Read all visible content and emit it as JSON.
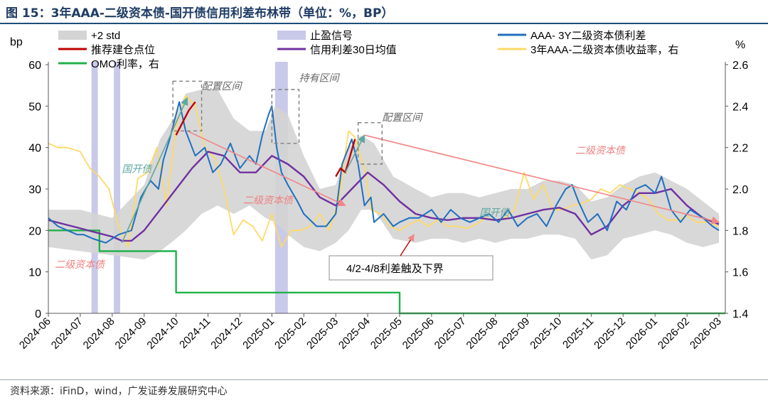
{
  "figure": {
    "title": "图 15：3年AAA-二级资本债-国开债信用利差布林带（单位：%，BP）",
    "source": "资料来源：iFinD，wind，广发证券发展研究中心"
  },
  "chart_data": {
    "type": "line",
    "title": "图 15：3年AAA-二级资本债-国开债信用利差布林带（单位：%，BP）",
    "left_axis_label": "bp",
    "right_axis_label": "%",
    "left_ylim": [
      0,
      60
    ],
    "left_ticks": [
      "0",
      "10",
      "20",
      "30",
      "40",
      "50",
      "60"
    ],
    "right_ylim": [
      1.4,
      2.6
    ],
    "right_ticks": [
      "1.4",
      "1.6",
      "1.8",
      "2.0",
      "2.2",
      "2.4",
      "2.6"
    ],
    "x_tick_labels": [
      "2024-06",
      "2024-07",
      "2024-08",
      "2024-09",
      "2024-10",
      "2024-11",
      "2024-12",
      "2025-01",
      "2025-02",
      "2025-03",
      "2025-04",
      "2025-05",
      "2025-06",
      "2025-07",
      "2025-08",
      "2025-09",
      "2025-10",
      "2025-11",
      "2025-12",
      "2026-01",
      "2026-02",
      "2026-03"
    ],
    "x_range_months": [
      0,
      21.2
    ],
    "grid": false,
    "legend_position": "top",
    "legend": [
      {
        "key": "band",
        "label": "+2 std",
        "kind": "area",
        "color": "#d4d4d4"
      },
      {
        "key": "signal",
        "label": "止盈信号",
        "kind": "area",
        "color": "#c9c9ea"
      },
      {
        "key": "spread",
        "label": "AAA- 3Y二级资本债利差",
        "kind": "line",
        "color": "#1f6fbf"
      },
      {
        "key": "buy",
        "label": "推荐建仓点位",
        "kind": "line",
        "color": "#c00000"
      },
      {
        "key": "ma30",
        "label": "信用利差30日均值",
        "kind": "line",
        "color": "#7030a0"
      },
      {
        "key": "yield",
        "label": "3年AAA-二级资本债收益率，右",
        "kind": "line",
        "color": "#ffd966"
      },
      {
        "key": "omo",
        "label": "OMO利率，右",
        "kind": "line",
        "color": "#22b14c"
      }
    ],
    "colors": {
      "band": "#d4d4d4",
      "signal": "#c9c9ea",
      "spread": "#1f6fbf",
      "buy": "#c00000",
      "ma30": "#7030a0",
      "yield": "#ffd966",
      "omo": "#22b14c",
      "trend": "#f28585",
      "uptrend": "#5fa8a0",
      "annotation": "#f08080"
    },
    "series": [
      {
        "name": "AAA- 3Y二级资本债利差",
        "axis": "left",
        "x": [
          0,
          0.3,
          0.6,
          0.9,
          1.1,
          1.4,
          1.8,
          2.2,
          2.6,
          2.9,
          3.2,
          3.45,
          3.6,
          3.8,
          4.1,
          4.3,
          4.6,
          4.9,
          5.15,
          5.4,
          5.7,
          6.0,
          6.3,
          6.5,
          6.7,
          6.9,
          7.0,
          7.15,
          7.3,
          7.5,
          7.8,
          8.0,
          8.4,
          8.7,
          9.0,
          9.2,
          9.4,
          9.5,
          9.7,
          9.9,
          10.1,
          10.2,
          10.5,
          10.8,
          11.0,
          11.3,
          11.6,
          12.0,
          12.3,
          12.6,
          12.9,
          13.2,
          13.5,
          13.8,
          14.1,
          14.4,
          14.7,
          15.0,
          15.3,
          15.6,
          15.9,
          16.2,
          16.4,
          16.6,
          16.9,
          17.2,
          17.5,
          17.8,
          18.1,
          18.4,
          18.7,
          19.0,
          19.2,
          19.5,
          19.8,
          20.1,
          20.5,
          20.8,
          21.0
        ],
        "y": [
          23,
          21,
          20,
          19,
          19,
          18,
          17,
          19,
          20,
          28,
          32,
          30,
          37,
          42,
          51,
          44,
          38,
          40,
          34,
          36,
          41,
          35,
          38,
          36,
          43,
          48,
          50,
          40,
          34,
          31,
          27,
          24,
          21,
          21,
          24,
          36,
          40,
          42,
          36,
          26,
          28,
          22,
          24,
          21,
          22,
          23,
          23,
          25,
          22,
          25,
          23,
          22,
          23,
          24,
          22,
          25,
          21,
          23,
          24,
          21,
          26,
          30,
          31,
          27,
          22,
          24,
          20,
          27,
          25,
          30,
          31,
          29,
          33,
          25,
          22,
          25,
          23,
          21,
          20
        ]
      },
      {
        "name": "信用利差30日均值",
        "axis": "left",
        "x": [
          0,
          0.5,
          1.0,
          1.5,
          2.0,
          2.3,
          2.6,
          3.0,
          3.5,
          4.0,
          4.5,
          5.0,
          5.5,
          6.0,
          6.5,
          7.0,
          7.5,
          8.0,
          8.5,
          9.0,
          9.5,
          10.0,
          10.5,
          11.0,
          11.5,
          12.0,
          12.5,
          13.0,
          13.5,
          14.0,
          14.5,
          15.0,
          15.5,
          16.0,
          16.5,
          17.0,
          17.5,
          18.0,
          18.5,
          19.0,
          19.5,
          20.0,
          20.5,
          21.0
        ],
        "y": [
          22.5,
          21.5,
          20.5,
          19.5,
          18.5,
          17.5,
          17.5,
          20,
          25,
          30,
          35,
          39,
          38,
          34,
          34,
          38,
          36,
          33,
          28,
          26,
          30,
          34,
          31,
          27,
          24,
          23,
          22.5,
          23,
          23,
          22.5,
          23,
          24,
          25,
          25.5,
          24,
          19,
          21,
          26,
          29,
          29,
          30,
          26,
          23,
          21.5
        ]
      },
      {
        "name": "3年AAA-二级资本债收益率，右",
        "axis": "right",
        "x": [
          0,
          0.3,
          0.6,
          1.0,
          1.3,
          1.6,
          1.9,
          2.2,
          2.5,
          2.8,
          3.1,
          3.4,
          3.7,
          4.0,
          4.3,
          4.6,
          4.9,
          5.2,
          5.5,
          5.8,
          6.1,
          6.4,
          6.7,
          7.0,
          7.3,
          7.6,
          7.9,
          8.2,
          8.5,
          8.8,
          9.1,
          9.4,
          9.6,
          9.9,
          10.1,
          10.4,
          10.7,
          11.0,
          11.3,
          11.6,
          11.9,
          12.2,
          12.5,
          12.8,
          13.1,
          13.4,
          13.7,
          14.0,
          14.3,
          14.6,
          14.9,
          15.2,
          15.5,
          15.8,
          16.1,
          16.4,
          16.7,
          17.0,
          17.3,
          17.6,
          17.9,
          18.2,
          18.5,
          18.8,
          19.1,
          19.4,
          19.7,
          20.0,
          20.3,
          20.6,
          21.0
        ],
        "y": [
          2.22,
          2.2,
          2.2,
          2.18,
          2.1,
          2.06,
          2.0,
          1.82,
          1.72,
          2.05,
          2.08,
          2.2,
          1.92,
          2.3,
          2.45,
          2.4,
          2.2,
          2.15,
          2.0,
          1.78,
          1.85,
          1.82,
          1.75,
          1.88,
          1.72,
          1.8,
          1.8,
          1.82,
          1.88,
          1.8,
          1.95,
          2.28,
          2.25,
          2.1,
          1.9,
          1.88,
          1.82,
          1.8,
          1.83,
          1.85,
          1.82,
          1.85,
          1.82,
          1.82,
          1.81,
          1.83,
          1.86,
          1.85,
          1.86,
          1.9,
          2.08,
          1.95,
          2.02,
          1.9,
          1.9,
          1.92,
          1.93,
          1.95,
          2.0,
          1.98,
          2.02,
          2.0,
          1.98,
          1.95,
          1.88,
          1.85,
          1.85,
          1.87,
          1.84,
          1.84,
          1.82
        ]
      },
      {
        "name": "OMO利率，右",
        "axis": "right",
        "x": [
          0,
          1.6,
          1.6,
          4.0,
          4.0,
          11.0,
          11.0,
          21.2
        ],
        "y": [
          1.8,
          1.8,
          1.7,
          1.7,
          1.5,
          1.5,
          1.4,
          1.4
        ]
      },
      {
        "name": "推荐建仓点位",
        "axis": "left",
        "segments": [
          {
            "x": [
              4.0,
              4.2,
              4.4,
              4.6
            ],
            "y": [
              43,
              46,
              49,
              51
            ]
          },
          {
            "x": [
              9.0,
              9.15,
              9.3,
              9.45,
              9.6
            ],
            "y": [
              33,
              35,
              34,
              38,
              42
            ]
          }
        ]
      },
      {
        "name": "+2 std",
        "axis": "left",
        "x": [
          0,
          1,
          2,
          3,
          3.5,
          4,
          4.3,
          4.8,
          5.3,
          5.8,
          6.3,
          6.8,
          7.1,
          7.5,
          8,
          8.5,
          9,
          9.4,
          9.8,
          10.2,
          10.8,
          11.5,
          12,
          12.5,
          13,
          13.5,
          14,
          14.5,
          15,
          15.5,
          16,
          16.5,
          17,
          17.5,
          18,
          18.5,
          19,
          19.5,
          20,
          20.5,
          21
        ],
        "upper": [
          25,
          25,
          23,
          31,
          42,
          48,
          53,
          54,
          54,
          47,
          44,
          44,
          50,
          48,
          38,
          30,
          31,
          40,
          43,
          41,
          33,
          30,
          28,
          29,
          29,
          28,
          29,
          30,
          30,
          32,
          32,
          31,
          27,
          28,
          31,
          33,
          34,
          32,
          30,
          27,
          24
        ],
        "lower": [
          16,
          15,
          14,
          13,
          15,
          18,
          20,
          24,
          26,
          24,
          26,
          23,
          22,
          19,
          16,
          15,
          17,
          20,
          25,
          25,
          18,
          17,
          18,
          18,
          17,
          18,
          17,
          18,
          18,
          19,
          19,
          18,
          13,
          14,
          18,
          19,
          20,
          19,
          17,
          16,
          17
        ]
      }
    ],
    "signal_bands_months": [
      [
        1.35,
        1.55
      ],
      [
        2.05,
        2.25
      ],
      [
        7.1,
        7.5
      ]
    ],
    "trend_lines": [
      {
        "color": "red",
        "x": [
          4.35,
          9.3
        ],
        "y": [
          44,
          26
        ]
      },
      {
        "color": "red",
        "x": [
          9.9,
          21.0
        ],
        "y": [
          43,
          22
        ]
      },
      {
        "color": "teal",
        "x": [
          2.3,
          4.35
        ],
        "y": [
          17,
          52
        ]
      },
      {
        "color": "teal",
        "x": [
          9.3,
          9.9
        ],
        "y": [
          34,
          43
        ]
      }
    ],
    "boxes": [
      {
        "x": [
          3.9,
          4.8
        ],
        "y": [
          44,
          56
        ]
      },
      {
        "x": [
          7.0,
          7.85
        ],
        "y": [
          41,
          54
        ]
      },
      {
        "x": [
          9.7,
          10.45
        ],
        "y": [
          36,
          46
        ]
      }
    ],
    "annotations": [
      {
        "text": "配置区间",
        "x": 4.8,
        "y": 54,
        "color": "#666666"
      },
      {
        "text": "持有区间",
        "x": 7.85,
        "y": 56,
        "color": "#666666"
      },
      {
        "text": "配置区间",
        "x": 10.45,
        "y": 46.5,
        "color": "#666666"
      },
      {
        "text": "国开债",
        "x": 2.3,
        "y": 34,
        "color": "#5fa8a0"
      },
      {
        "text": "二级资本债",
        "x": 6.1,
        "y": 26.5,
        "color": "#f08080"
      },
      {
        "text": "国开债",
        "x": 13.5,
        "y": 23.5,
        "color": "#5fa8a0"
      },
      {
        "text": "二级资本债",
        "x": 16.5,
        "y": 38.5,
        "color": "#f08080"
      },
      {
        "text": "二级资本债",
        "x": 0.2,
        "y": 11,
        "color": "#f08080"
      }
    ],
    "callout": {
      "text": "4/2-4/8利差触及下界",
      "arrow_to": {
        "x": 11.45,
        "y": 19
      }
    }
  }
}
